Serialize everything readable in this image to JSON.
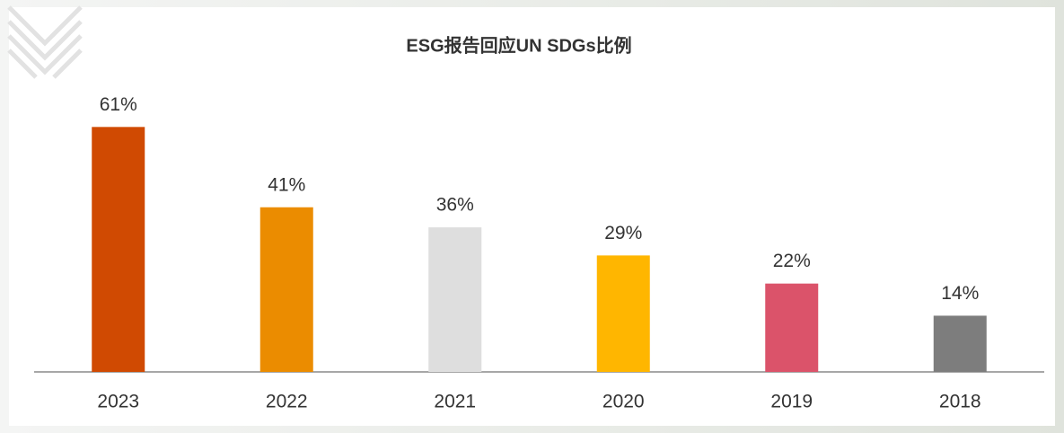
{
  "chart_data": {
    "type": "bar",
    "title": "ESG报告回应UN SDGs比例",
    "categories": [
      "2023",
      "2022",
      "2021",
      "2020",
      "2019",
      "2018"
    ],
    "values": [
      61,
      41,
      36,
      29,
      22,
      14
    ],
    "value_labels": [
      "61%",
      "41%",
      "36%",
      "29%",
      "22%",
      "14%"
    ],
    "colors": [
      "#d04a02",
      "#eb8c00",
      "#dedede",
      "#ffb600",
      "#db536a",
      "#7d7d7d"
    ]
  }
}
